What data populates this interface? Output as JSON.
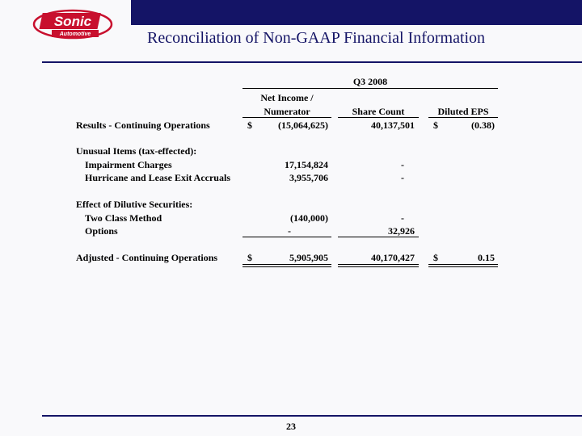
{
  "header": {
    "logo_text": "Sonic",
    "logo_sub": "Automotive",
    "title": "Reconciliation of Non-GAAP Financial Information"
  },
  "table": {
    "period": "Q3 2008",
    "col_netincome_1": "Net Income /",
    "col_netincome_2": "Numerator",
    "col_sharecount": "Share Count",
    "col_eps": "Diluted EPS",
    "results": {
      "label": "Results - Continuing Operations",
      "cur1": "$",
      "net": "(15,064,625)",
      "shares": "40,137,501",
      "cur2": "$",
      "eps": "(0.38)"
    },
    "unusual_heading": "Unusual Items (tax-effected):",
    "impairment": {
      "label": "Impairment Charges",
      "net": "17,154,824",
      "shares": "-"
    },
    "hurricane": {
      "label": "Hurricane and Lease Exit Accruals",
      "net": "3,955,706",
      "shares": "-"
    },
    "dilutive_heading": "Effect of Dilutive Securities:",
    "twoclass": {
      "label": "Two Class Method",
      "net": "(140,000)",
      "shares": "-"
    },
    "options": {
      "label": "Options",
      "net": "-",
      "shares": "32,926"
    },
    "adjusted": {
      "label": "Adjusted - Continuing Operations",
      "cur1": "$",
      "net": "5,905,905",
      "shares": "40,170,427",
      "cur2": "$",
      "eps": "0.15"
    }
  },
  "footer": {
    "page_number": "23"
  }
}
